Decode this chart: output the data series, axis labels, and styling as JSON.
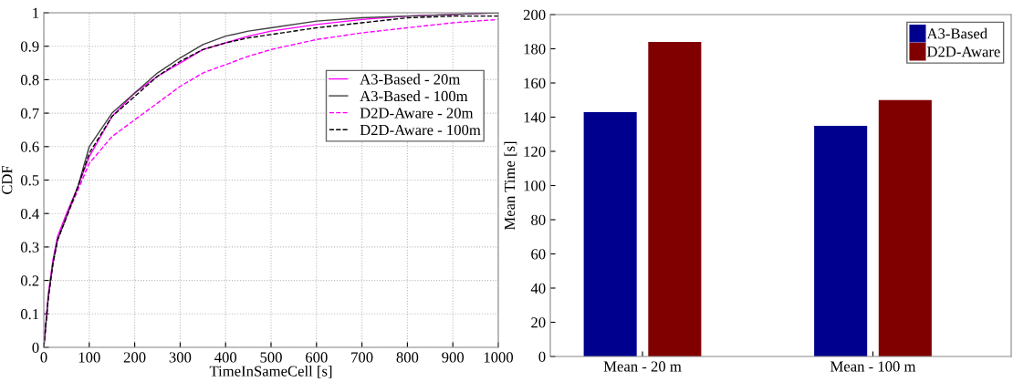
{
  "chart_data": [
    {
      "type": "line",
      "xlabel": "TimeInSameCell [s]",
      "ylabel": "CDF",
      "xlim": [
        0,
        1000
      ],
      "ylim": [
        0,
        1
      ],
      "xticks": [
        0,
        100,
        200,
        300,
        400,
        500,
        600,
        700,
        800,
        900,
        1000
      ],
      "yticks": [
        0,
        0.1,
        0.2,
        0.3,
        0.4,
        0.5,
        0.6,
        0.7,
        0.8,
        0.9,
        1
      ],
      "grid": true,
      "legend": "top right",
      "marker": "none",
      "x": [
        0,
        10,
        20,
        30,
        50,
        75,
        100,
        150,
        200,
        250,
        300,
        350,
        400,
        450,
        500,
        600,
        700,
        800,
        900,
        1000
      ],
      "series": [
        {
          "name": "A3-Based - 20m",
          "color": "#ff00ff",
          "line_style": "solid",
          "values": [
            0,
            0.16,
            0.26,
            0.33,
            0.4,
            0.48,
            0.57,
            0.69,
            0.76,
            0.81,
            0.85,
            0.89,
            0.91,
            0.93,
            0.945,
            0.965,
            0.98,
            0.99,
            0.995,
            1
          ]
        },
        {
          "name": "A3-Based - 100m",
          "color": "#404040",
          "line_style": "solid",
          "values": [
            0,
            0.15,
            0.25,
            0.32,
            0.39,
            0.48,
            0.6,
            0.7,
            0.76,
            0.82,
            0.865,
            0.905,
            0.93,
            0.945,
            0.955,
            0.975,
            0.985,
            0.99,
            0.995,
            1
          ]
        },
        {
          "name": "D2D-Aware - 20m",
          "color": "#ff00ff",
          "line_style": "dashed",
          "values": [
            0,
            0.15,
            0.25,
            0.32,
            0.39,
            0.47,
            0.55,
            0.63,
            0.68,
            0.73,
            0.78,
            0.82,
            0.845,
            0.87,
            0.89,
            0.92,
            0.94,
            0.955,
            0.97,
            0.98
          ]
        },
        {
          "name": "D2D-Aware - 100m",
          "color": "#000000",
          "line_style": "dashed",
          "values": [
            0,
            0.15,
            0.25,
            0.32,
            0.39,
            0.48,
            0.58,
            0.69,
            0.75,
            0.81,
            0.855,
            0.89,
            0.91,
            0.925,
            0.935,
            0.955,
            0.97,
            0.985,
            0.99,
            0.99
          ]
        }
      ]
    },
    {
      "type": "bar",
      "ylabel": "Mean Time [s]",
      "categories": [
        "Mean - 20 m",
        "Mean - 100 m"
      ],
      "ylim": [
        0,
        200
      ],
      "yticks": [
        0,
        20,
        40,
        60,
        80,
        100,
        120,
        140,
        160,
        180,
        200
      ],
      "legend": "top right",
      "series": [
        {
          "name": "A3-Based",
          "color": "#00008f",
          "values": [
            143,
            135
          ]
        },
        {
          "name": "D2D-Aware",
          "color": "#800000",
          "values": [
            184,
            150
          ]
        }
      ]
    }
  ]
}
